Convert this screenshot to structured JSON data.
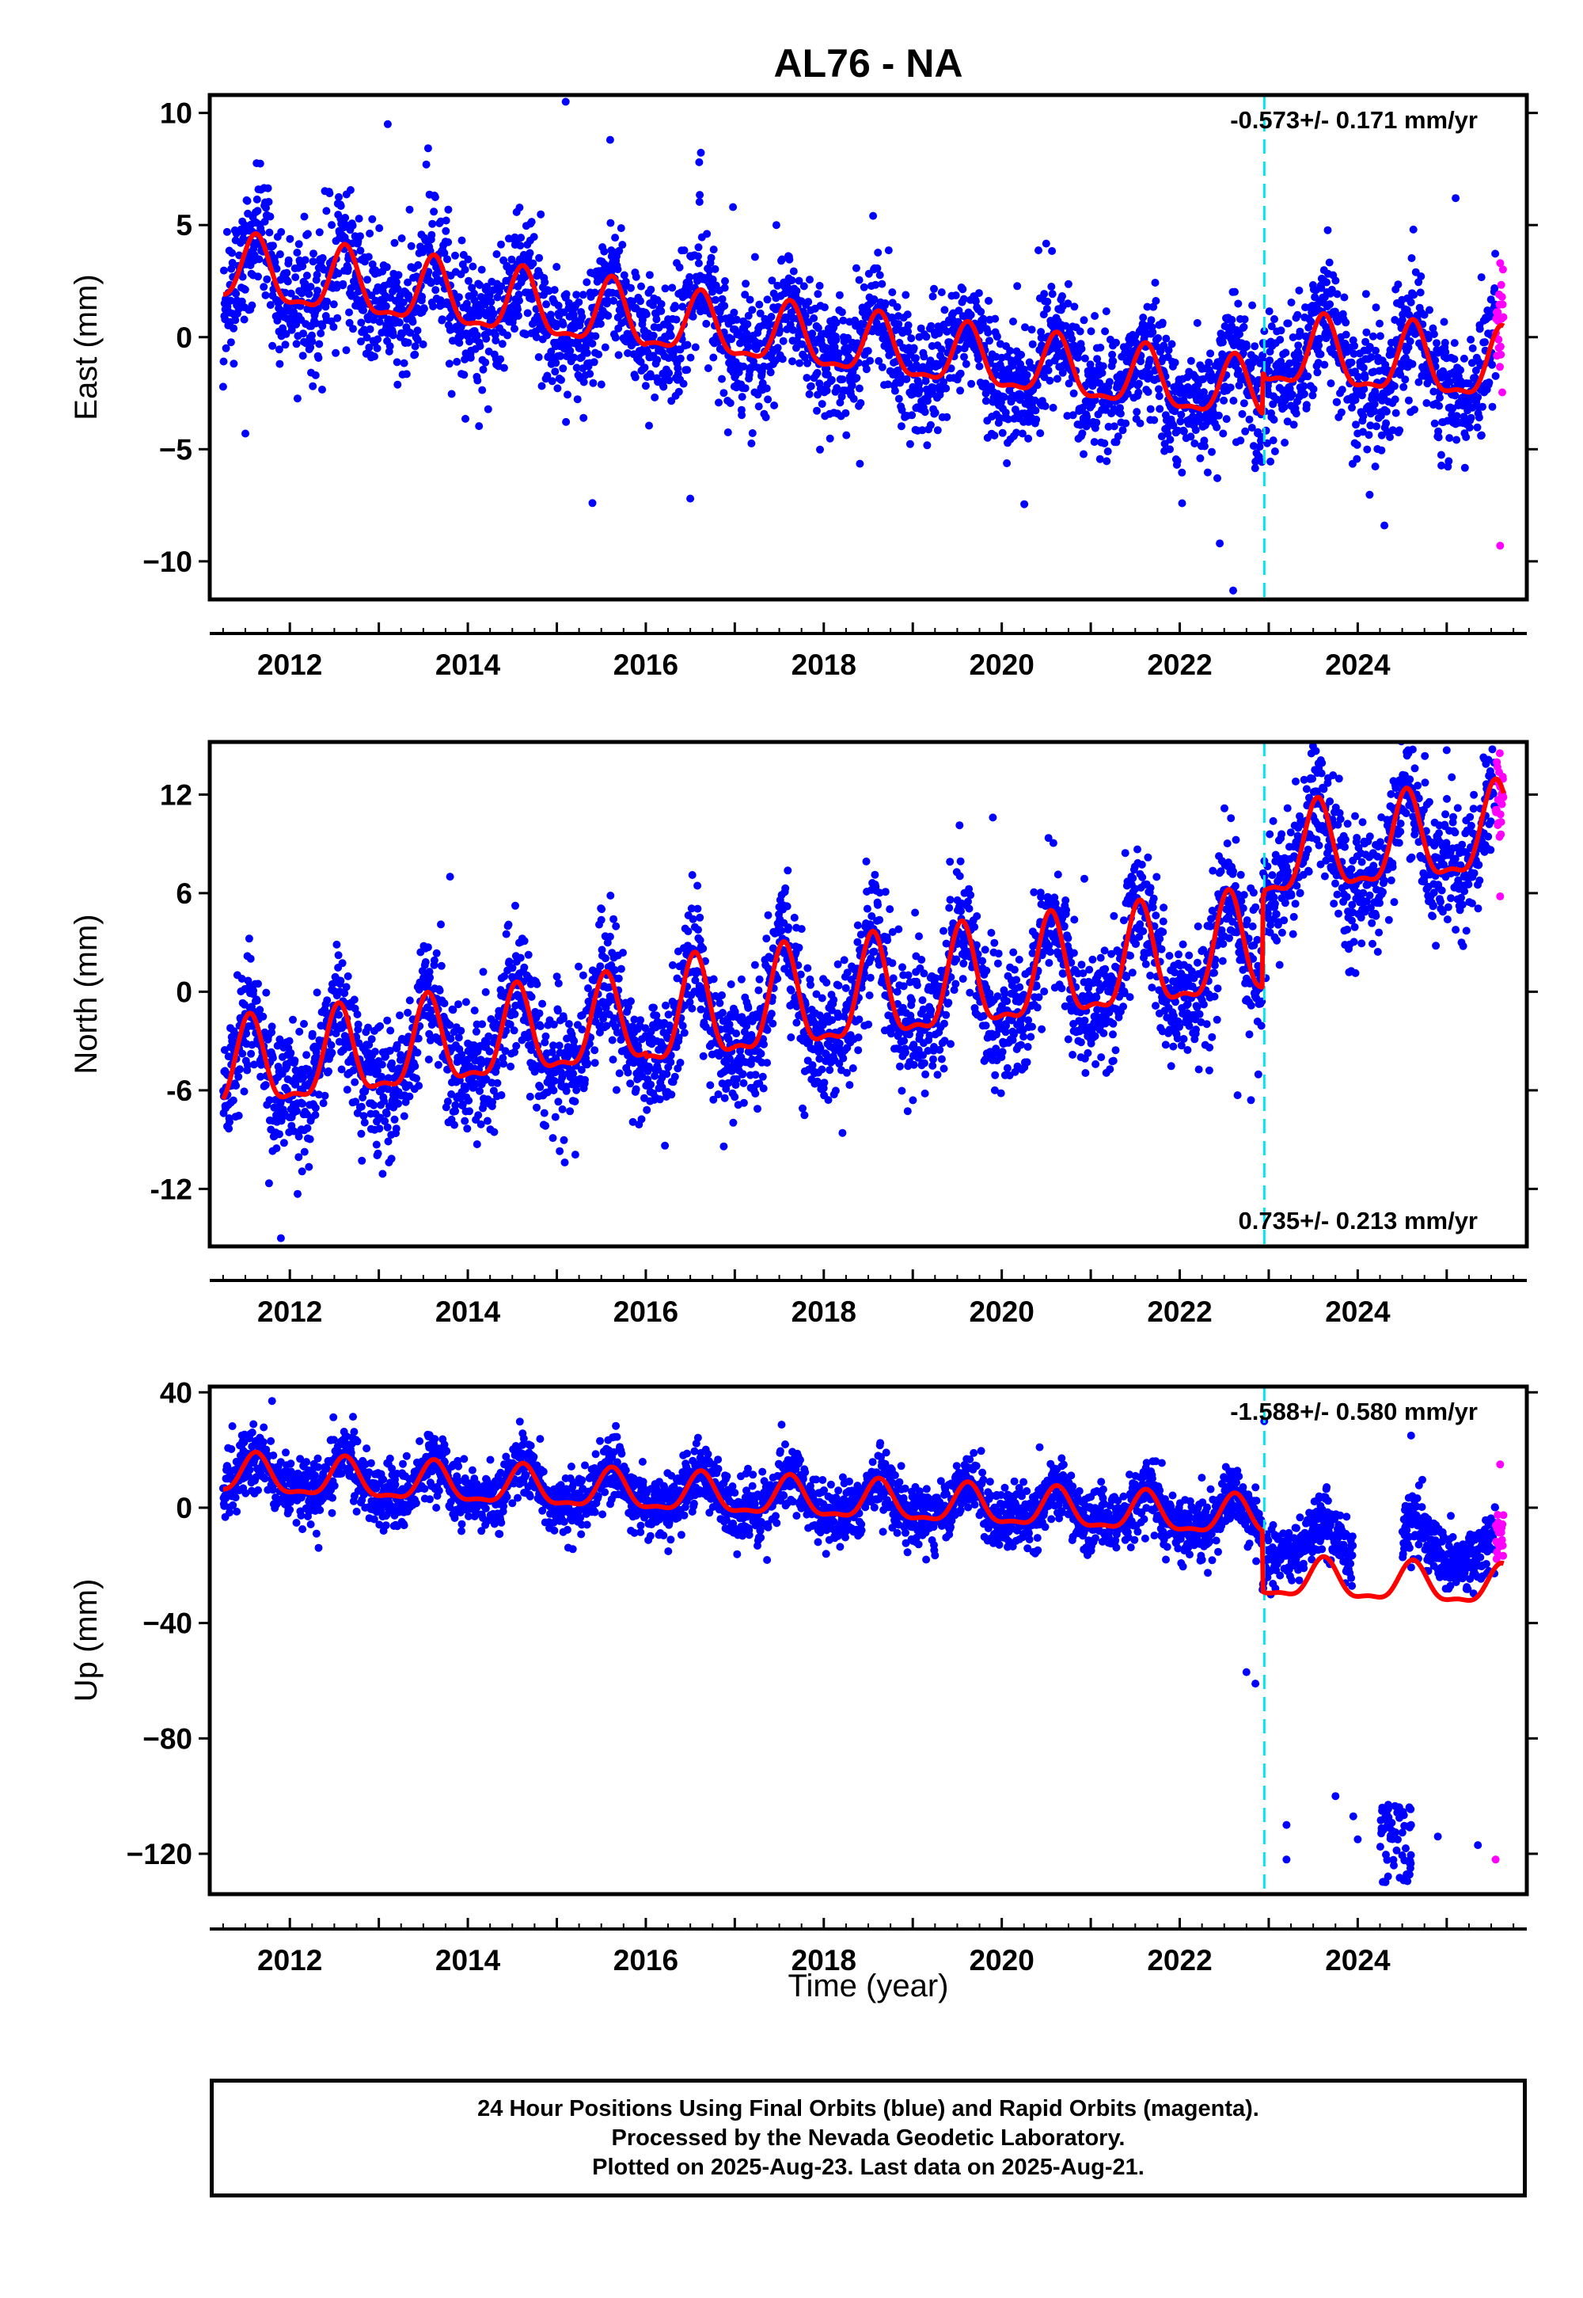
{
  "title": "AL76 - NA",
  "xlabel": "Time (year)",
  "colors": {
    "final_orbits": "#0000ff",
    "rapid_orbits": "#ff00ff",
    "model_fit": "#ff0000",
    "offset_marker": "#00e5ee",
    "frame": "#000000"
  },
  "caption": {
    "line1": "24 Hour Positions Using Final Orbits (blue) and Rapid Orbits (magenta).",
    "line2": "Processed by the Nevada Geodetic Laboratory.",
    "line3": "Plotted on 2025-Aug-23. Last data on 2025-Aug-21."
  },
  "chart_data": [
    {
      "type": "scatter",
      "component": "East",
      "ylabel": "East (mm)",
      "velocity_label": "-0.573+/- 0.171 mm/yr",
      "velocity_label_position": "top-right",
      "xlim": [
        2011.1,
        2025.9
      ],
      "ylim": [
        -11.7,
        10.8
      ],
      "x_ticks": [
        2012,
        2014,
        2016,
        2018,
        2020,
        2022,
        2024
      ],
      "y_ticks": [
        10,
        5,
        0,
        -5,
        -10
      ],
      "y_tick_labels": [
        "10",
        "5",
        "0",
        "−5",
        "−10"
      ],
      "offset_epoch": 2022.95,
      "data_start": 2011.25,
      "data_end": 2025.64,
      "rapid_start": 2025.55,
      "model": {
        "trend": [
          {
            "x": 2011.25,
            "y": 2.9
          },
          {
            "x": 2022.9,
            "y": -2.6
          },
          {
            "x": 2022.96,
            "y": -0.8
          },
          {
            "x": 2025.64,
            "y": -1.5
          }
        ],
        "annual_amplitude": 1.3,
        "annual_peak_phase": 0.62,
        "amplitude_changes": [
          [
            2011.25,
            1.4
          ],
          [
            2016.0,
            1.3
          ],
          [
            2022.95,
            1.5
          ]
        ]
      },
      "scatter_sigma": 1.4,
      "outliers": [
        {
          "x": 2015.1,
          "y": 10.5
        },
        {
          "x": 2015.6,
          "y": 8.8
        },
        {
          "x": 2013.1,
          "y": 9.5
        },
        {
          "x": 2016.6,
          "y": 7.8
        },
        {
          "x": 2011.5,
          "y": -4.3
        },
        {
          "x": 2015.4,
          "y": -7.4
        },
        {
          "x": 2016.5,
          "y": -7.2
        },
        {
          "x": 2022.45,
          "y": -9.2
        },
        {
          "x": 2022.6,
          "y": -11.3
        },
        {
          "x": 2024.3,
          "y": -8.4
        },
        {
          "x": 2025.1,
          "y": 6.2
        },
        {
          "x": 2025.6,
          "y": -9.3
        }
      ]
    },
    {
      "type": "scatter",
      "component": "North",
      "ylabel": "North (mm)",
      "velocity_label": "0.735+/- 0.213 mm/yr",
      "velocity_label_position": "bottom-right",
      "xlim": [
        2011.1,
        2025.9
      ],
      "ylim": [
        -15.5,
        15.2
      ],
      "x_ticks": [
        2012,
        2014,
        2016,
        2018,
        2020,
        2022,
        2024
      ],
      "y_ticks": [
        12,
        6,
        0,
        -6,
        -12
      ],
      "y_tick_labels": [
        "12",
        "6",
        "0",
        "-6",
        "-12"
      ],
      "offset_epoch": 2022.95,
      "data_start": 2011.25,
      "data_end": 2025.64,
      "rapid_start": 2025.55,
      "model": {
        "trend": [
          {
            "x": 2011.25,
            "y": -5.0
          },
          {
            "x": 2022.9,
            "y": 2.4
          },
          {
            "x": 2022.96,
            "y": 8.0
          },
          {
            "x": 2025.64,
            "y": 9.5
          }
        ],
        "annual_amplitude": 3.0,
        "annual_peak_phase": 0.55,
        "amplitude_changes": [
          [
            2011.25,
            2.6
          ],
          [
            2016.0,
            3.0
          ],
          [
            2022.95,
            2.6
          ]
        ]
      },
      "scatter_sigma": 1.9,
      "outliers": [
        {
          "x": 2011.9,
          "y": -15.0
        },
        {
          "x": 2013.8,
          "y": 7.0
        },
        {
          "x": 2014.45,
          "y": 4.0
        },
        {
          "x": 2019.9,
          "y": 10.6
        },
        {
          "x": 2022.65,
          "y": -6.3
        },
        {
          "x": 2022.8,
          "y": -6.6
        },
        {
          "x": 2025.0,
          "y": 14.7
        },
        {
          "x": 2025.6,
          "y": 5.8
        }
      ]
    },
    {
      "type": "scatter",
      "component": "Up",
      "ylabel": "Up (mm)",
      "velocity_label": "-1.588+/- 0.580 mm/yr",
      "velocity_label_position": "top-right",
      "xlim": [
        2011.1,
        2025.9
      ],
      "ylim": [
        -134,
        42
      ],
      "x_ticks": [
        2012,
        2014,
        2016,
        2018,
        2020,
        2022,
        2024
      ],
      "y_ticks": [
        40,
        0,
        -40,
        -80,
        -120
      ],
      "y_tick_labels": [
        "40",
        "0",
        "−40",
        "−80",
        "−120"
      ],
      "offset_epoch": 2022.95,
      "data_start": 2011.25,
      "data_end": 2025.64,
      "rapid_start": 2025.55,
      "gaps": [
        [
          2023.95,
          2024.5
        ]
      ],
      "model": {
        "trend": [
          {
            "x": 2011.25,
            "y": 11
          },
          {
            "x": 2022.9,
            "y": -4
          },
          {
            "x": 2022.96,
            "y": -25
          },
          {
            "x": 2025.64,
            "y": -28
          }
        ],
        "annual_amplitude": 6.5,
        "annual_peak_phase": 0.62,
        "amplitude_changes": [
          [
            2011.25,
            6.5
          ],
          [
            2022.95,
            6.5
          ]
        ]
      },
      "data_offset_after_epoch": 13,
      "scatter_sigma": 5.5,
      "outliers": [
        {
          "x": 2011.8,
          "y": 37
        },
        {
          "x": 2012.3,
          "y": -9
        },
        {
          "x": 2022.75,
          "y": -57
        },
        {
          "x": 2022.85,
          "y": -61
        },
        {
          "x": 2022.95,
          "y": 30
        },
        {
          "x": 2023.2,
          "y": -110
        },
        {
          "x": 2023.2,
          "y": -122
        },
        {
          "x": 2023.75,
          "y": -100
        },
        {
          "x": 2023.95,
          "y": -107
        },
        {
          "x": 2024.0,
          "y": -115
        },
        {
          "x": 2024.6,
          "y": -110
        },
        {
          "x": 2024.9,
          "y": -114
        },
        {
          "x": 2025.35,
          "y": -117
        },
        {
          "x": 2025.55,
          "y": -122
        },
        {
          "x": 2024.6,
          "y": 25
        },
        {
          "x": 2025.6,
          "y": 15
        }
      ],
      "outlier_clusters": [
        {
          "x_range": [
            2024.25,
            2024.6
          ],
          "y_range": [
            -130,
            -103
          ],
          "count": 60
        }
      ]
    }
  ]
}
